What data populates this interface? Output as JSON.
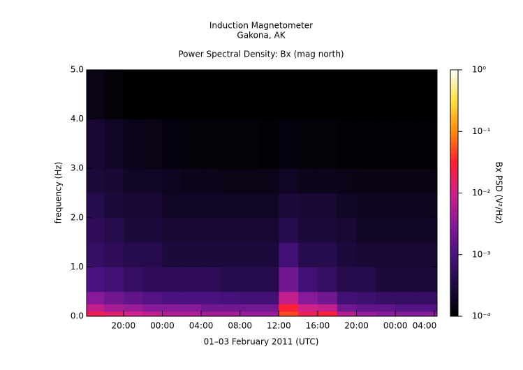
{
  "chart_data": {
    "type": "spectrogram",
    "title": "Induction Magnetometer",
    "subtitle": "Gakona, AK",
    "plot_title": "Power Spectral Density: Bx (mag north)",
    "xlabel": "01–03 February 2011 (UTC)",
    "ylabel": "frequency (Hz)",
    "xlim": [
      16.2,
      52.3
    ],
    "xticks": [
      {
        "value": 20,
        "label": "20:00"
      },
      {
        "value": 24,
        "label": "00:00"
      },
      {
        "value": 28,
        "label": "04:00"
      },
      {
        "value": 32,
        "label": "08:00"
      },
      {
        "value": 36,
        "label": "12:00"
      },
      {
        "value": 40,
        "label": "16:00"
      },
      {
        "value": 44,
        "label": "20:00"
      },
      {
        "value": 48,
        "label": "00:00"
      },
      {
        "value": 52,
        "label": "04:00"
      }
    ],
    "ylim": [
      0,
      5
    ],
    "yticks": [
      {
        "value": 0,
        "label": "0.0"
      },
      {
        "value": 1,
        "label": "1.0"
      },
      {
        "value": 2,
        "label": "2.0"
      },
      {
        "value": 3,
        "label": "3.0"
      },
      {
        "value": 4,
        "label": "4.0"
      },
      {
        "value": 5,
        "label": "5.0"
      }
    ],
    "time_bins": [
      16.2,
      18,
      20,
      22,
      24,
      26,
      28,
      30,
      32,
      34,
      36,
      38,
      40,
      42,
      44,
      46,
      48,
      50,
      52,
      52.3
    ],
    "freq_bins": [
      0,
      0.1,
      0.25,
      0.5,
      1,
      1.5,
      2,
      2.5,
      3,
      4,
      5
    ],
    "z": [
      [
        0.02,
        0.015,
        0.01,
        0.008,
        0.006,
        0.006,
        0.005,
        0.005,
        0.004,
        0.004,
        0.05,
        0.02,
        0.03,
        0.006,
        0.004,
        0.003,
        0.003,
        0.003,
        0.003
      ],
      [
        0.008,
        0.005,
        0.004,
        0.003,
        0.003,
        0.003,
        0.002,
        0.002,
        0.002,
        0.002,
        0.03,
        0.01,
        0.008,
        0.002,
        0.0015,
        0.0015,
        0.0012,
        0.0012,
        0.0012
      ],
      [
        0.003,
        0.002,
        0.0015,
        0.0012,
        0.001,
        0.001,
        0.001,
        0.0009,
        0.0008,
        0.0008,
        0.008,
        0.003,
        0.002,
        0.0008,
        0.0007,
        0.0006,
        0.0006,
        0.0006,
        0.0006
      ],
      [
        0.001,
        0.0008,
        0.0006,
        0.0005,
        0.0005,
        0.0005,
        0.0005,
        0.0004,
        0.0004,
        0.0004,
        0.002,
        0.0008,
        0.0006,
        0.0004,
        0.0004,
        0.0003,
        0.0003,
        0.0003,
        0.0003
      ],
      [
        0.0006,
        0.0005,
        0.0004,
        0.0004,
        0.0003,
        0.0003,
        0.0003,
        0.0003,
        0.0003,
        0.0003,
        0.0008,
        0.0004,
        0.0004,
        0.0003,
        0.00025,
        0.00025,
        0.00025,
        0.00025,
        0.00025
      ],
      [
        0.0005,
        0.0004,
        0.0003,
        0.0003,
        0.00025,
        0.00025,
        0.00025,
        0.00025,
        0.00025,
        0.00025,
        0.0004,
        0.0003,
        0.0003,
        0.00025,
        0.0002,
        0.0002,
        0.0002,
        0.0002,
        0.0002
      ],
      [
        0.0004,
        0.0003,
        0.00025,
        0.00025,
        0.0002,
        0.0002,
        0.0002,
        0.0002,
        0.0002,
        0.0002,
        0.0003,
        0.00025,
        0.00025,
        0.0002,
        0.00018,
        0.00018,
        0.00018,
        0.00018,
        0.00018
      ],
      [
        0.0003,
        0.00025,
        0.0002,
        0.0002,
        0.00018,
        0.00016,
        0.00016,
        0.00015,
        0.00015,
        0.00015,
        0.0002,
        0.00016,
        0.00016,
        0.00015,
        0.00014,
        0.00014,
        0.00014,
        0.00014,
        0.00014
      ],
      [
        0.00025,
        0.0002,
        0.00016,
        0.00015,
        0.00013,
        0.00012,
        0.00012,
        0.00012,
        0.00012,
        0.00011,
        0.00013,
        0.00012,
        0.00012,
        0.00011,
        0.00011,
        0.00011,
        0.00011,
        0.00011,
        0.00011
      ],
      [
        0.00015,
        0.00012,
        0.0001,
        0.0001,
        0.0001,
        0.0001,
        0.0001,
        0.0001,
        0.0001,
        0.0001,
        0.0001,
        0.0001,
        0.0001,
        0.0001,
        0.0001,
        0.0001,
        0.0001,
        0.0001,
        0.0001
      ]
    ],
    "colormap": [
      "#000000",
      "#1e0a40",
      "#4a1280",
      "#8a1a9a",
      "#d0208a",
      "#ff2030",
      "#ff8a10",
      "#ffe040",
      "#ffffff"
    ],
    "colorbar": {
      "label": "Bx PSD (V²/Hz)",
      "log": true,
      "lim": [
        0.0001,
        1
      ],
      "ticks": [
        {
          "value": 0.0001,
          "label": "10⁻⁴"
        },
        {
          "value": 0.001,
          "label": "10⁻³"
        },
        {
          "value": 0.01,
          "label": "10⁻²"
        },
        {
          "value": 0.1,
          "label": "10⁻¹"
        },
        {
          "value": 1,
          "label": "10⁰"
        }
      ]
    }
  }
}
